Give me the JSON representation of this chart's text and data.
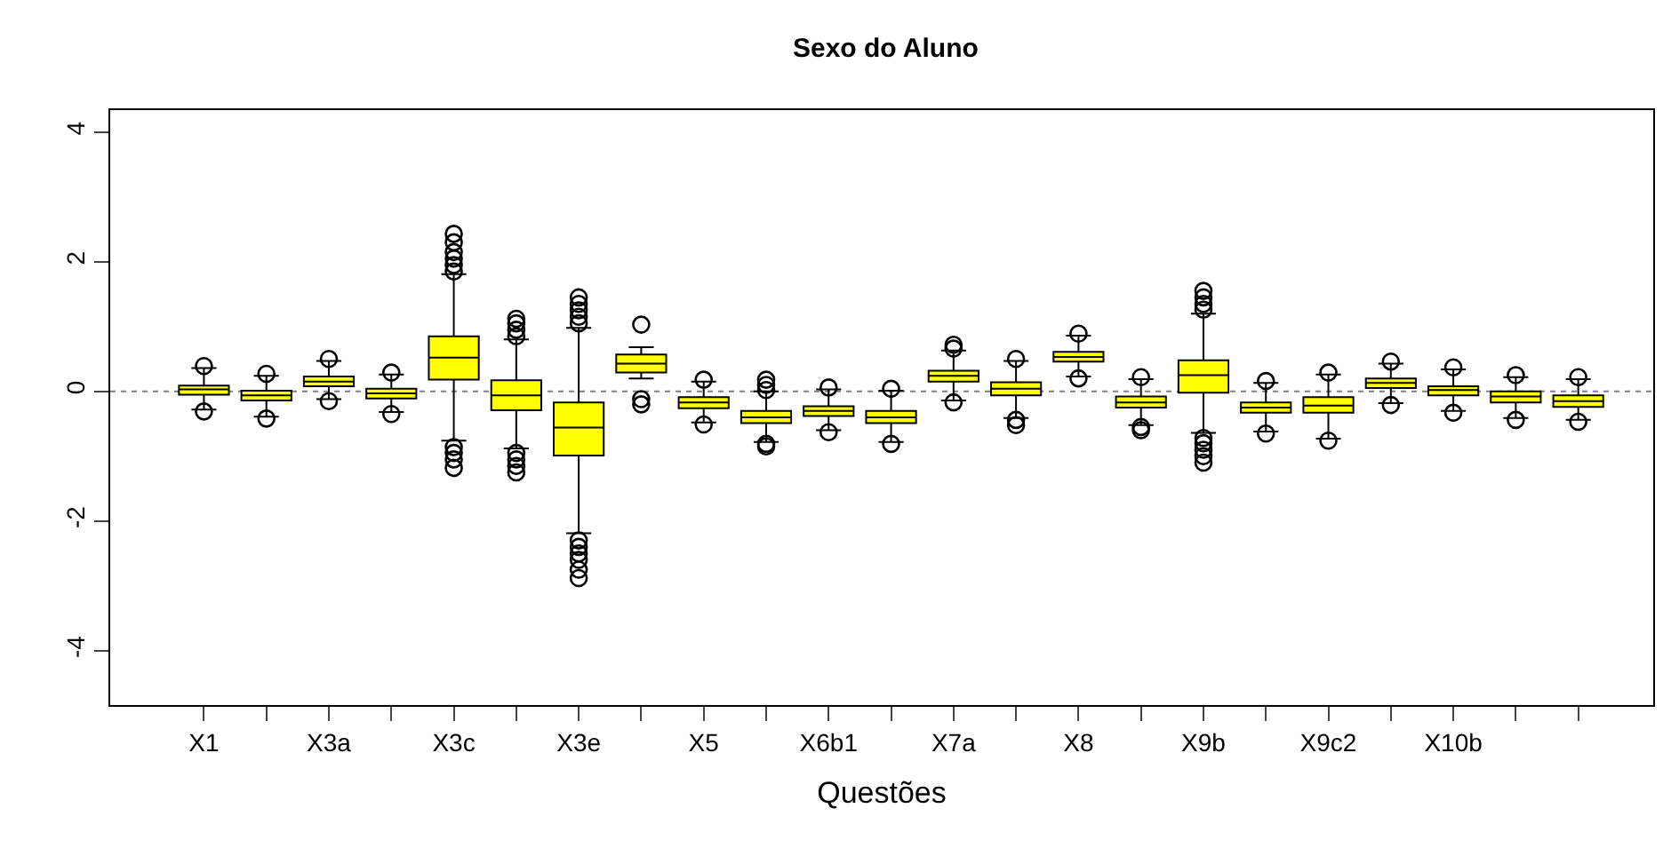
{
  "chart_data": {
    "type": "box",
    "title": "Sexo do Aluno",
    "xlabel": "Questões",
    "categories": [
      "X1",
      null,
      "X3a",
      null,
      "X3c",
      null,
      "X3e",
      null,
      "X5",
      null,
      "X6b1",
      null,
      "X7a",
      null,
      "X8",
      null,
      "X9b",
      null,
      "X9c2",
      null,
      "X10b",
      null,
      null
    ],
    "color": "#ffff00",
    "marker": "circle",
    "boxes": [
      {
        "low": -0.28,
        "q1": -0.05,
        "median": 0.03,
        "q3": 0.09,
        "high": 0.36,
        "outliers": [
          0.39,
          -0.31
        ]
      },
      {
        "low": -0.39,
        "q1": -0.14,
        "median": -0.06,
        "q3": 0.01,
        "high": 0.24,
        "outliers": [
          0.27,
          -0.42
        ]
      },
      {
        "low": -0.12,
        "q1": 0.08,
        "median": 0.15,
        "q3": 0.23,
        "high": 0.47,
        "outliers": [
          0.5,
          -0.15
        ]
      },
      {
        "low": -0.32,
        "q1": -0.11,
        "median": -0.03,
        "q3": 0.04,
        "high": 0.26,
        "outliers": [
          0.29,
          -0.35
        ]
      },
      {
        "low": -0.76,
        "q1": 0.18,
        "median": 0.52,
        "q3": 0.85,
        "high": 1.81,
        "outliers": [
          1.85,
          1.95,
          2.05,
          2.15,
          2.3,
          2.43,
          -0.86,
          -0.95,
          -1.05,
          -1.18
        ]
      },
      {
        "low": -0.88,
        "q1": -0.29,
        "median": -0.06,
        "q3": 0.17,
        "high": 0.8,
        "outliers": [
          0.85,
          0.95,
          1.05,
          1.12,
          -0.95,
          -1.05,
          -1.15,
          -1.25
        ]
      },
      {
        "low": -2.19,
        "q1": -0.99,
        "median": -0.56,
        "q3": -0.17,
        "high": 0.98,
        "outliers": [
          1.05,
          1.15,
          1.25,
          1.35,
          1.45,
          -2.3,
          -2.4,
          -2.5,
          -2.6,
          -2.75,
          -2.88
        ]
      },
      {
        "low": 0.2,
        "q1": 0.29,
        "median": 0.43,
        "q3": 0.57,
        "high": 0.68,
        "outliers": [
          1.03,
          -0.12,
          -0.2
        ]
      },
      {
        "low": -0.48,
        "q1": -0.26,
        "median": -0.17,
        "q3": -0.09,
        "high": 0.15,
        "outliers": [
          0.18,
          -0.51
        ]
      },
      {
        "low": -0.78,
        "q1": -0.49,
        "median": -0.4,
        "q3": -0.3,
        "high": 0.0,
        "outliers": [
          0.02,
          0.1,
          0.18,
          -0.81,
          -0.85
        ]
      },
      {
        "low": -0.6,
        "q1": -0.38,
        "median": -0.3,
        "q3": -0.23,
        "high": 0.03,
        "outliers": [
          0.06,
          -0.63
        ]
      },
      {
        "low": -0.78,
        "q1": -0.49,
        "median": -0.4,
        "q3": -0.3,
        "high": 0.01,
        "outliers": [
          0.04,
          -0.81
        ]
      },
      {
        "low": -0.14,
        "q1": 0.15,
        "median": 0.24,
        "q3": 0.32,
        "high": 0.63,
        "outliers": [
          0.66,
          0.72,
          -0.17
        ]
      },
      {
        "low": -0.41,
        "q1": -0.06,
        "median": 0.04,
        "q3": 0.14,
        "high": 0.47,
        "outliers": [
          0.5,
          -0.44,
          -0.52
        ]
      },
      {
        "low": 0.23,
        "q1": 0.46,
        "median": 0.53,
        "q3": 0.61,
        "high": 0.86,
        "outliers": [
          0.89,
          0.2
        ]
      },
      {
        "low": -0.52,
        "q1": -0.25,
        "median": -0.17,
        "q3": -0.08,
        "high": 0.19,
        "outliers": [
          0.22,
          -0.55,
          -0.6
        ]
      },
      {
        "low": -0.64,
        "q1": -0.02,
        "median": 0.25,
        "q3": 0.48,
        "high": 1.2,
        "outliers": [
          1.26,
          1.35,
          1.45,
          1.55,
          -0.72,
          -0.8,
          -0.9,
          -1.0,
          -1.1
        ]
      },
      {
        "low": -0.62,
        "q1": -0.33,
        "median": -0.25,
        "q3": -0.17,
        "high": 0.13,
        "outliers": [
          0.16,
          -0.65
        ]
      },
      {
        "low": -0.73,
        "q1": -0.33,
        "median": -0.22,
        "q3": -0.09,
        "high": 0.26,
        "outliers": [
          0.29,
          -0.76
        ]
      },
      {
        "low": -0.18,
        "q1": 0.05,
        "median": 0.13,
        "q3": 0.2,
        "high": 0.43,
        "outliers": [
          0.46,
          -0.21
        ]
      },
      {
        "low": -0.3,
        "q1": -0.06,
        "median": 0.02,
        "q3": 0.08,
        "high": 0.34,
        "outliers": [
          0.37,
          -0.33
        ]
      },
      {
        "low": -0.41,
        "q1": -0.17,
        "median": -0.08,
        "q3": 0.0,
        "high": 0.22,
        "outliers": [
          0.25,
          -0.44
        ]
      },
      {
        "low": -0.44,
        "q1": -0.24,
        "median": -0.15,
        "q3": -0.06,
        "high": 0.19,
        "outliers": [
          0.22,
          -0.47
        ]
      }
    ],
    "ylim": [
      -4.84,
      4.34
    ],
    "yticks": [
      -4,
      -2,
      0,
      2,
      4
    ],
    "ref_lines": [
      {
        "axis": "y",
        "value": 0,
        "color": "#808080",
        "line_style": "dotted"
      }
    ],
    "grid": false
  }
}
